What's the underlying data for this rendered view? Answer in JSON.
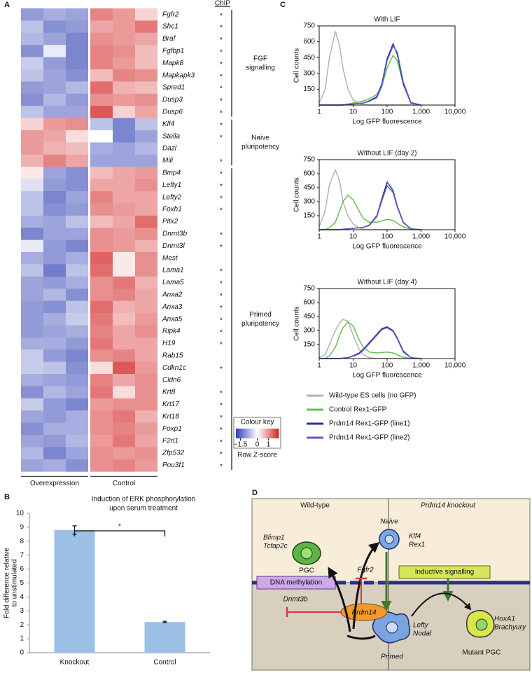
{
  "panels": [
    "A",
    "B",
    "C",
    "D"
  ],
  "heatmap": {
    "chip_header": "ChIP",
    "column_groups": [
      "Overexpression",
      "Control"
    ],
    "rows": [
      {
        "gene": "Fgfr2",
        "chip": "*",
        "values": [
          -1.0,
          -0.8,
          -0.9,
          1.1,
          0.9,
          0.4
        ]
      },
      {
        "gene": "Shc1",
        "chip": "*",
        "values": [
          -0.6,
          -1.1,
          -1.0,
          0.8,
          0.9,
          1.2
        ]
      },
      {
        "gene": "Braf",
        "chip": "*",
        "values": [
          -0.7,
          -0.9,
          -1.2,
          1.0,
          0.9,
          0.8
        ]
      },
      {
        "gene": "Fgfbp1",
        "chip": "*",
        "values": [
          -1.1,
          -0.2,
          -1.2,
          1.1,
          1.0,
          0.6
        ]
      },
      {
        "gene": "Mapk8",
        "chip": "*",
        "values": [
          -0.5,
          -1.0,
          -1.2,
          1.1,
          0.9,
          0.6
        ]
      },
      {
        "gene": "Mapkapk3",
        "chip": "*",
        "values": [
          -0.6,
          -0.9,
          -1.1,
          0.6,
          1.1,
          1.0
        ]
      },
      {
        "gene": "Spred1",
        "chip": "*",
        "values": [
          -1.0,
          -0.9,
          -0.7,
          1.3,
          0.7,
          0.6
        ]
      },
      {
        "gene": "Dusp3",
        "chip": "*",
        "values": [
          -1.1,
          -0.7,
          -1.0,
          1.0,
          0.9,
          1.0
        ]
      },
      {
        "gene": "Dusp6",
        "chip": "*",
        "values": [
          -0.6,
          -0.9,
          -0.9,
          1.5,
          0.4,
          0.8
        ]
      },
      {
        "gene": "Klf4",
        "chip": "*",
        "values": [
          0.4,
          0.9,
          1.0,
          -0.6,
          -1.2,
          -0.6
        ]
      },
      {
        "gene": "Stella",
        "chip": "*",
        "values": [
          0.9,
          0.8,
          0.3,
          0.0,
          -1.2,
          -0.9
        ]
      },
      {
        "gene": "Dazl",
        "values": [
          0.9,
          0.7,
          0.6,
          -0.8,
          -0.9,
          -0.7
        ]
      },
      {
        "gene": "Mili",
        "chip": "*",
        "values": [
          0.7,
          1.1,
          0.8,
          -0.9,
          -0.9,
          -0.9
        ]
      },
      {
        "gene": "Bmp4",
        "chip": "*",
        "values": [
          0.2,
          -0.9,
          -1.1,
          0.6,
          0.8,
          0.9
        ]
      },
      {
        "gene": "Lefty1",
        "chip": "*",
        "values": [
          -0.3,
          -1.0,
          -1.1,
          0.8,
          0.8,
          1.0
        ]
      },
      {
        "gene": "Lefty2",
        "chip": "*",
        "values": [
          -0.6,
          -1.2,
          -0.9,
          1.1,
          0.8,
          0.8
        ]
      },
      {
        "gene": "Foxh1",
        "chip": "*",
        "values": [
          -0.6,
          -1.1,
          -1.0,
          1.0,
          0.9,
          0.8
        ]
      },
      {
        "gene": "Pitx2",
        "values": [
          -0.8,
          -0.9,
          -0.6,
          0.6,
          0.8,
          1.3
        ]
      },
      {
        "gene": "Dnmt3b",
        "chip": "*",
        "values": [
          -1.2,
          -0.9,
          -0.9,
          1.0,
          0.9,
          1.0
        ]
      },
      {
        "gene": "Dnmt3l",
        "chip": "*",
        "values": [
          -0.2,
          -1.0,
          -1.2,
          1.0,
          0.9,
          0.7
        ]
      },
      {
        "gene": "Mest",
        "values": [
          -0.8,
          -1.0,
          -0.8,
          1.4,
          0.2,
          1.0
        ]
      },
      {
        "gene": "Lama1",
        "chip": "*",
        "values": [
          -0.6,
          -1.3,
          -0.6,
          1.3,
          0.2,
          1.0
        ]
      },
      {
        "gene": "Lama5",
        "chip": "*",
        "values": [
          -0.9,
          -1.0,
          -0.8,
          1.0,
          1.2,
          0.7
        ]
      },
      {
        "gene": "Anxa2",
        "chip": "*",
        "values": [
          -0.9,
          -0.7,
          -1.1,
          1.0,
          1.1,
          0.8
        ]
      },
      {
        "gene": "Anxa3",
        "chip": "*",
        "values": [
          -1.0,
          -1.1,
          -0.6,
          1.3,
          0.7,
          0.8
        ]
      },
      {
        "gene": "Anxa5",
        "chip": "*",
        "values": [
          -1.0,
          -0.8,
          -0.5,
          1.2,
          0.6,
          0.9
        ]
      },
      {
        "gene": "Ripk4",
        "chip": "*",
        "values": [
          -1.0,
          -0.9,
          -0.8,
          1.1,
          0.8,
          1.0
        ]
      },
      {
        "gene": "H19",
        "chip": "*",
        "values": [
          -0.8,
          -0.8,
          -1.0,
          1.2,
          0.8,
          0.8
        ]
      },
      {
        "gene": "Rab15",
        "values": [
          -0.5,
          -1.0,
          -1.2,
          1.0,
          1.1,
          0.8
        ]
      },
      {
        "gene": "Cdkn1c",
        "chip": "*",
        "values": [
          -0.5,
          -0.6,
          -1.1,
          0.3,
          1.5,
          0.9
        ]
      },
      {
        "gene": "Cldn6",
        "values": [
          -0.8,
          -0.9,
          -1.0,
          1.1,
          0.8,
          1.0
        ]
      },
      {
        "gene": "Krt8",
        "chip": "*",
        "values": [
          -1.1,
          -0.7,
          -0.9,
          1.2,
          0.3,
          1.0
        ]
      },
      {
        "gene": "Krt17",
        "chip": "*",
        "values": [
          -0.5,
          -1.0,
          -1.2,
          0.9,
          1.0,
          1.0
        ]
      },
      {
        "gene": "Krt18",
        "chip": "*",
        "values": [
          -0.9,
          -1.0,
          -0.8,
          1.0,
          1.2,
          0.7
        ]
      },
      {
        "gene": "Foxp1",
        "chip": "*",
        "values": [
          -1.1,
          -0.8,
          -0.8,
          1.0,
          1.1,
          0.9
        ]
      },
      {
        "gene": "F2rl1",
        "chip": "*",
        "values": [
          -0.9,
          -1.0,
          -0.7,
          0.9,
          1.2,
          0.8
        ]
      },
      {
        "gene": "Zfp532",
        "chip": "*",
        "values": [
          -0.7,
          -1.2,
          -0.9,
          1.0,
          0.9,
          1.0
        ]
      },
      {
        "gene": "Pou3f1",
        "chip": "*",
        "values": [
          -0.9,
          -0.8,
          -1.1,
          1.0,
          1.1,
          0.9
        ]
      }
    ],
    "groups": [
      {
        "label": [
          "FGF",
          "signalling"
        ],
        "rows": [
          0,
          8
        ]
      },
      {
        "label": [
          "Naive",
          "pluripotency"
        ],
        "rows": [
          9,
          12
        ]
      },
      {
        "label": [
          "Primed",
          "pluripotency"
        ],
        "rows": [
          13,
          37
        ]
      }
    ],
    "colour_key": {
      "title": "Colour key",
      "xlabel": "Row Z-score",
      "lim": [
        -1.9,
        1.9
      ],
      "ticks": [
        {
          "value": -1.5,
          "label": "−1.5"
        },
        0,
        1
      ],
      "colors": [
        "#2f3fb3",
        "#ffffff",
        "#d42a2a"
      ]
    }
  },
  "chart_data": [
    {
      "type": "bar",
      "title": [
        "Induction of ERK phosphorylation",
        "upon serum treatment"
      ],
      "ylabel": [
        "Fold difference relative",
        "to unstimulated"
      ],
      "categories": [
        "Knockout",
        "Control"
      ],
      "values": [
        8.8,
        2.2
      ],
      "errors": [
        0.3,
        0.05
      ],
      "color": "#9dc0e6",
      "ylim": [
        0,
        10
      ],
      "yticks": [
        0,
        1,
        2,
        3,
        4,
        5,
        6,
        7,
        8,
        9,
        10
      ],
      "annotation": "*"
    },
    {
      "type": "line",
      "title": "With LIF",
      "xlabel": "Log GFP fluorescence",
      "ylabel": "Cell counts",
      "xscale": "log",
      "x": [
        1,
        1.5,
        2,
        3,
        4,
        5,
        7,
        10,
        15,
        20,
        30,
        50,
        70,
        100,
        150,
        200,
        300,
        500,
        1000
      ],
      "xlim": [
        1,
        10000
      ],
      "xticks": [
        1,
        10,
        100,
        {
          "value": 1000,
          "label": "1,000"
        },
        {
          "value": 10000,
          "label": "10,000"
        }
      ],
      "ylim": [
        0,
        750
      ],
      "yticks": [
        150,
        300,
        450,
        600,
        750
      ],
      "series": [
        {
          "name": "Wild-type ES cells (no GFP)",
          "color": "#b3b3b3",
          "values": [
            20,
            150,
            450,
            700,
            560,
            350,
            150,
            50,
            15,
            5,
            0,
            0,
            0,
            0,
            0,
            0,
            0,
            0,
            0
          ]
        },
        {
          "name": "Control Rex1-GFP",
          "color": "#66c04a",
          "values": [
            0,
            0,
            0,
            0,
            0,
            5,
            10,
            20,
            30,
            40,
            60,
            100,
            180,
            350,
            470,
            420,
            200,
            20,
            0
          ]
        },
        {
          "name": "Prdm14 Rex1-GFP (line1)",
          "color": "#28308f",
          "values": [
            0,
            0,
            0,
            0,
            0,
            0,
            5,
            10,
            15,
            20,
            40,
            80,
            200,
            440,
            580,
            480,
            200,
            20,
            0
          ]
        },
        {
          "name": "Prdm14 Rex1-GFP (line2)",
          "color": "#5b5bc9",
          "values": [
            0,
            0,
            0,
            0,
            0,
            0,
            5,
            10,
            15,
            20,
            35,
            70,
            180,
            420,
            560,
            500,
            220,
            25,
            0
          ]
        }
      ]
    },
    {
      "type": "line",
      "title": "Without LIF (day 2)",
      "xlabel": "Log GFP fluorescence",
      "ylabel": "Cell counts",
      "xscale": "log",
      "x": [
        1,
        1.5,
        2,
        3,
        4,
        5,
        7,
        10,
        15,
        20,
        30,
        50,
        70,
        100,
        150,
        200,
        300,
        500,
        1000
      ],
      "xlim": [
        1,
        10000
      ],
      "xticks": [
        1,
        10,
        100,
        {
          "value": 1000,
          "label": "1,000"
        },
        {
          "value": 10000,
          "label": "10,000"
        }
      ],
      "ylim": [
        0,
        750
      ],
      "yticks": [
        150,
        300,
        450,
        600,
        750
      ],
      "series": [
        {
          "color": "#b3b3b3",
          "values": [
            30,
            200,
            480,
            640,
            520,
            300,
            150,
            60,
            20,
            5,
            0,
            0,
            0,
            0,
            0,
            0,
            0,
            0,
            0
          ]
        },
        {
          "color": "#66c04a",
          "values": [
            0,
            0,
            20,
            80,
            200,
            300,
            370,
            320,
            200,
            120,
            80,
            80,
            95,
            110,
            100,
            70,
            30,
            5,
            0
          ]
        },
        {
          "color": "#28308f",
          "values": [
            0,
            0,
            0,
            0,
            0,
            5,
            10,
            15,
            20,
            25,
            50,
            150,
            330,
            510,
            420,
            250,
            80,
            10,
            0
          ]
        },
        {
          "color": "#5b5bc9",
          "values": [
            0,
            0,
            0,
            0,
            0,
            5,
            10,
            15,
            20,
            25,
            45,
            140,
            310,
            470,
            400,
            240,
            75,
            10,
            0
          ]
        }
      ]
    },
    {
      "type": "line",
      "title": "Without LIF (day 4)",
      "xlabel": "Log GFP fluorescence",
      "ylabel": "Cell counts",
      "xscale": "log",
      "x": [
        1,
        1.5,
        2,
        3,
        4,
        5,
        7,
        10,
        15,
        20,
        30,
        50,
        70,
        100,
        150,
        200,
        300,
        500,
        1000
      ],
      "xlim": [
        1,
        10000
      ],
      "xticks": [
        1,
        10,
        100,
        {
          "value": 1000,
          "label": "1,000"
        },
        {
          "value": 10000,
          "label": "10,000"
        }
      ],
      "ylim": [
        0,
        750
      ],
      "yticks": [
        150,
        300,
        450,
        600,
        750
      ],
      "series": [
        {
          "color": "#b3b3b3",
          "values": [
            10,
            40,
            150,
            300,
            380,
            420,
            400,
            250,
            100,
            40,
            10,
            0,
            0,
            0,
            0,
            0,
            0,
            0,
            0
          ]
        },
        {
          "color": "#66c04a",
          "values": [
            0,
            0,
            30,
            120,
            250,
            330,
            390,
            350,
            200,
            120,
            70,
            60,
            65,
            70,
            60,
            40,
            15,
            0,
            0
          ]
        },
        {
          "color": "#28308f",
          "values": [
            0,
            0,
            0,
            0,
            0,
            5,
            10,
            30,
            60,
            100,
            170,
            260,
            320,
            340,
            300,
            220,
            80,
            10,
            0
          ]
        },
        {
          "color": "#5b5bc9",
          "values": [
            0,
            0,
            0,
            0,
            0,
            5,
            10,
            25,
            50,
            90,
            160,
            250,
            310,
            330,
            290,
            210,
            70,
            10,
            0
          ]
        }
      ]
    }
  ],
  "diagram": {
    "wild_type": "Wild-type",
    "knockout": "Prdm14 knockout",
    "naive": "Naive",
    "naive_genes": [
      "Klf4",
      "Rex1"
    ],
    "pgc_genes": [
      "Blimp1",
      "Tcfap2c"
    ],
    "pgc": "PGC",
    "fgfr2": "Fgfr2",
    "inductive": "Inductive signalling",
    "dna_methylation": "DNA methylation",
    "dnmt3b": "Dnmt3b",
    "prdm14": "Prdm14",
    "primed": "Primed",
    "primed_genes": [
      "Lefty",
      "Nodal"
    ],
    "mutant_genes": [
      "HoxA1",
      "Brachyury"
    ],
    "mutant_pgc": "Mutant PGC"
  }
}
